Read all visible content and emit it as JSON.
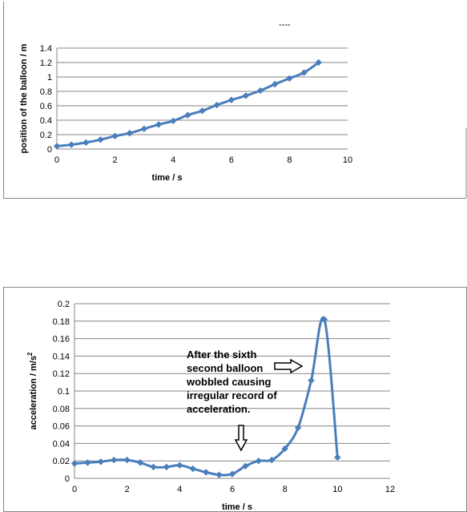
{
  "chart_data": [
    {
      "type": "line",
      "title": "",
      "xlabel": "time / s",
      "ylabel": "position of the balloon  / m",
      "xlim": [
        0,
        10
      ],
      "ylim": [
        0,
        1.4
      ],
      "xticks": [
        0,
        2,
        4,
        6,
        8,
        10
      ],
      "yticks": [
        0,
        0.2,
        0.4,
        0.6,
        0.8,
        1,
        1.2,
        1.4
      ],
      "grid": "horizontal",
      "legend": "none",
      "series": [
        {
          "x": [
            0,
            0.5,
            1,
            1.5,
            2,
            2.5,
            3,
            3.5,
            4,
            4.5,
            5,
            5.5,
            6,
            6.5,
            7,
            7.5,
            8,
            8.5,
            9
          ],
          "y": [
            0.04,
            0.06,
            0.09,
            0.13,
            0.18,
            0.22,
            0.28,
            0.34,
            0.39,
            0.47,
            0.53,
            0.61,
            0.68,
            0.74,
            0.81,
            0.9,
            0.98,
            1.06,
            1.2
          ]
        }
      ],
      "color": "#4a7ebb",
      "stray_text": "----"
    },
    {
      "type": "line",
      "title": "",
      "xlabel": "time / s",
      "ylabel": "acceleration / m/s",
      "ylabel_superscript": "2",
      "xlim": [
        0,
        12
      ],
      "ylim": [
        0,
        0.2
      ],
      "xticks": [
        0,
        2,
        4,
        6,
        8,
        10,
        12
      ],
      "yticks": [
        0,
        0.02,
        0.04,
        0.06,
        0.08,
        0.1,
        0.12,
        0.14,
        0.16,
        0.18,
        0.2
      ],
      "grid": "horizontal",
      "legend": "none",
      "series": [
        {
          "x": [
            0,
            0.5,
            1,
            1.5,
            2,
            2.5,
            3,
            3.5,
            4,
            4.5,
            5,
            5.5,
            6,
            6.5,
            7,
            7.5,
            8,
            8.5,
            9,
            9.5,
            10
          ],
          "y": [
            0.017,
            0.018,
            0.019,
            0.021,
            0.021,
            0.018,
            0.013,
            0.013,
            0.015,
            0.011,
            0.007,
            0.004,
            0.005,
            0.014,
            0.02,
            0.021,
            0.034,
            0.058,
            0.112,
            0.182,
            0.024
          ]
        }
      ],
      "color": "#4a7ebb",
      "annotation": {
        "lines": [
          "After the sixth",
          "second balloon",
          "wobbled causing",
          "irregular record of",
          "acceleration."
        ]
      }
    }
  ]
}
